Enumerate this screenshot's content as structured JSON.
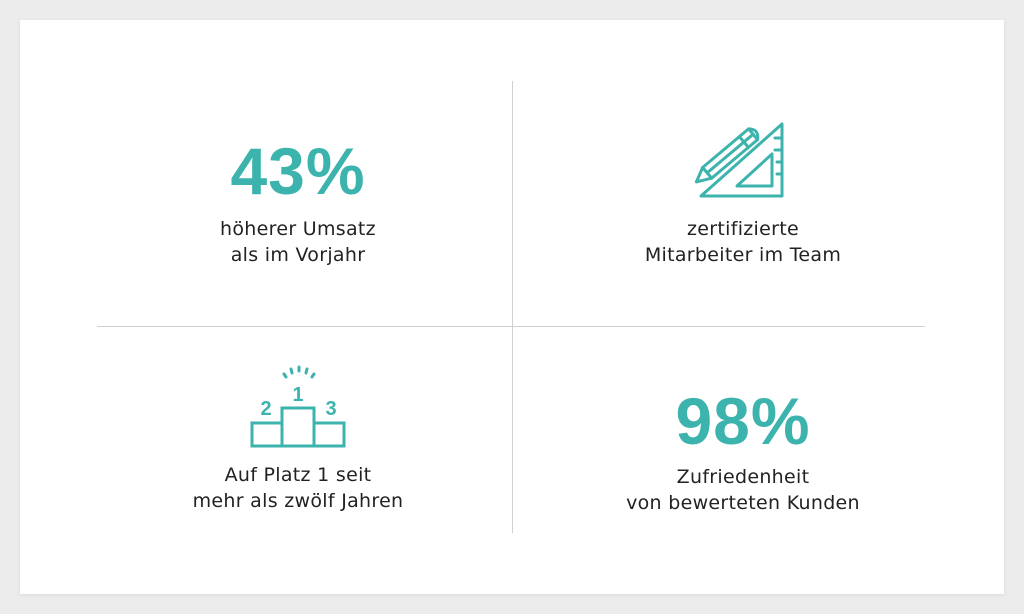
{
  "colors": {
    "accent": "#3db3ad",
    "text": "#222222",
    "divider": "#cfcfcf",
    "background": "#ececec",
    "card": "#ffffff"
  },
  "stats": [
    {
      "value": "43%",
      "caption_line1": "höherer Umsatz",
      "caption_line2": "als im Vorjahr"
    },
    {
      "icon": "pencil-ruler-icon",
      "caption_line1": "zertifizierte",
      "caption_line2": "Mitarbeiter im Team"
    },
    {
      "icon": "podium-icon",
      "podium_labels": [
        "2",
        "1",
        "3"
      ],
      "caption_line1": "Auf Platz 1 seit",
      "caption_line2": "mehr als zwölf Jahren"
    },
    {
      "value": "98%",
      "caption_line1": "Zufriedenheit",
      "caption_line2": "von bewerteten Kunden"
    }
  ]
}
